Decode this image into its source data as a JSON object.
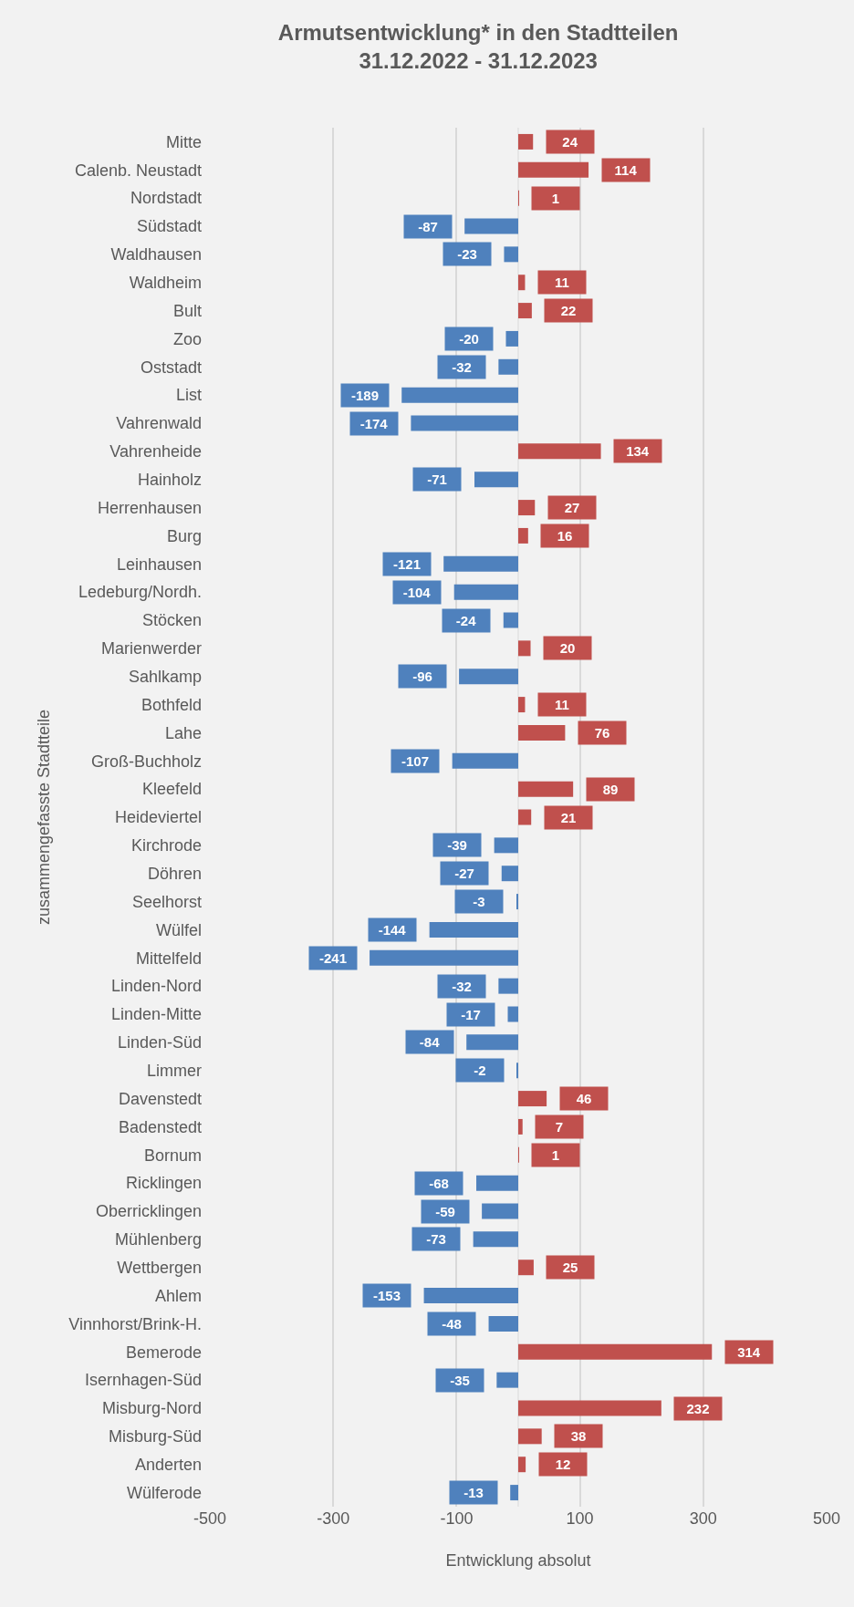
{
  "chart_data": {
    "type": "bar",
    "orientation": "horizontal",
    "title": "Armutsentwicklung* in den Stadtteilen\n31.12.2022 - 31.12.2023",
    "xlabel": "Entwicklung absolut",
    "ylabel": "zusammengefasste Stadtteile",
    "categories": [
      "Mitte",
      "Calenb. Neustadt",
      "Nordstadt",
      "Südstadt",
      "Waldhausen",
      "Waldheim",
      "Bult",
      "Zoo",
      "Oststadt",
      "List",
      "Vahrenwald",
      "Vahrenheide",
      "Hainholz",
      "Herrenhausen",
      "Burg",
      "Leinhausen",
      "Ledeburg/Nordh.",
      "Stöcken",
      "Marienwerder",
      "Sahlkamp",
      "Bothfeld",
      "Lahe",
      "Groß-Buchholz",
      "Kleefeld",
      "Heideviertel",
      "Kirchrode",
      "Döhren",
      "Seelhorst",
      "Wülfel",
      "Mittelfeld",
      "Linden-Nord",
      "Linden-Mitte",
      "Linden-Süd",
      "Limmer",
      "Davenstedt",
      "Badenstedt",
      "Bornum",
      "Ricklingen",
      "Oberricklingen",
      "Mühlenberg",
      "Wettbergen",
      "Ahlem",
      "Vinnhorst/Brink-H.",
      "Bemerode",
      "Isernhagen-Süd",
      "Misburg-Nord",
      "Misburg-Süd",
      "Anderten",
      "Wülferode"
    ],
    "values": [
      24,
      114,
      1,
      -87,
      -23,
      11,
      22,
      -20,
      -32,
      -189,
      -174,
      134,
      -71,
      27,
      16,
      -121,
      -104,
      -24,
      20,
      -96,
      11,
      76,
      -107,
      89,
      21,
      -39,
      -27,
      -3,
      -144,
      -241,
      -32,
      -17,
      -84,
      -2,
      46,
      7,
      1,
      -68,
      -59,
      -73,
      25,
      -153,
      -48,
      314,
      -35,
      232,
      38,
      12,
      -13
    ],
    "colors": [
      "#c0504d",
      "#c0504d",
      "#c0504d",
      "#4f81bd",
      "#4f81bd",
      "#c0504d",
      "#c0504d",
      "#4f81bd",
      "#4f81bd",
      "#4f81bd",
      "#4f81bd",
      "#c0504d",
      "#4f81bd",
      "#c0504d",
      "#c0504d",
      "#4f81bd",
      "#4f81bd",
      "#4f81bd",
      "#c0504d",
      "#4f81bd",
      "#c0504d",
      "#c0504d",
      "#4f81bd",
      "#c0504d",
      "#c0504d",
      "#4f81bd",
      "#4f81bd",
      "#4f81bd",
      "#4f81bd",
      "#4f81bd",
      "#4f81bd",
      "#4f81bd",
      "#4f81bd",
      "#4f81bd",
      "#c0504d",
      "#c0504d",
      "#c0504d",
      "#4f81bd",
      "#4f81bd",
      "#4f81bd",
      "#c0504d",
      "#4f81bd",
      "#4f81bd",
      "#c0504d",
      "#4f81bd",
      "#c0504d",
      "#c0504d",
      "#c0504d",
      "#4f81bd"
    ],
    "xlim": [
      -500,
      500
    ],
    "xticks": [
      -500,
      -300,
      -100,
      100,
      300,
      500
    ],
    "grid": "x",
    "data_labels": true
  }
}
